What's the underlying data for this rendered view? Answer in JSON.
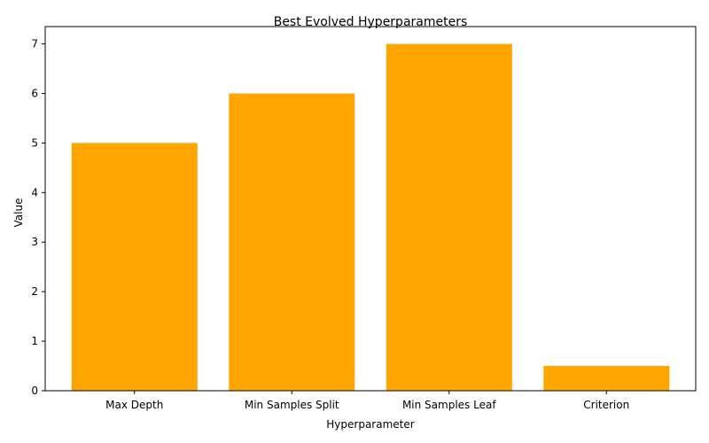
{
  "chart_data": {
    "type": "bar",
    "title": "Best Evolved Hyperparameters",
    "xlabel": "Hyperparameter",
    "ylabel": "Value",
    "categories": [
      "Max Depth",
      "Min Samples Split",
      "Min Samples Leaf",
      "Criterion"
    ],
    "values": [
      5,
      6,
      7,
      0.5
    ],
    "ylim": [
      0,
      7.35
    ],
    "yticks": [
      "0",
      "1",
      "2",
      "3",
      "4",
      "5",
      "6",
      "7"
    ],
    "bar_color": "#ffa500",
    "grid": false,
    "legend": "none"
  }
}
